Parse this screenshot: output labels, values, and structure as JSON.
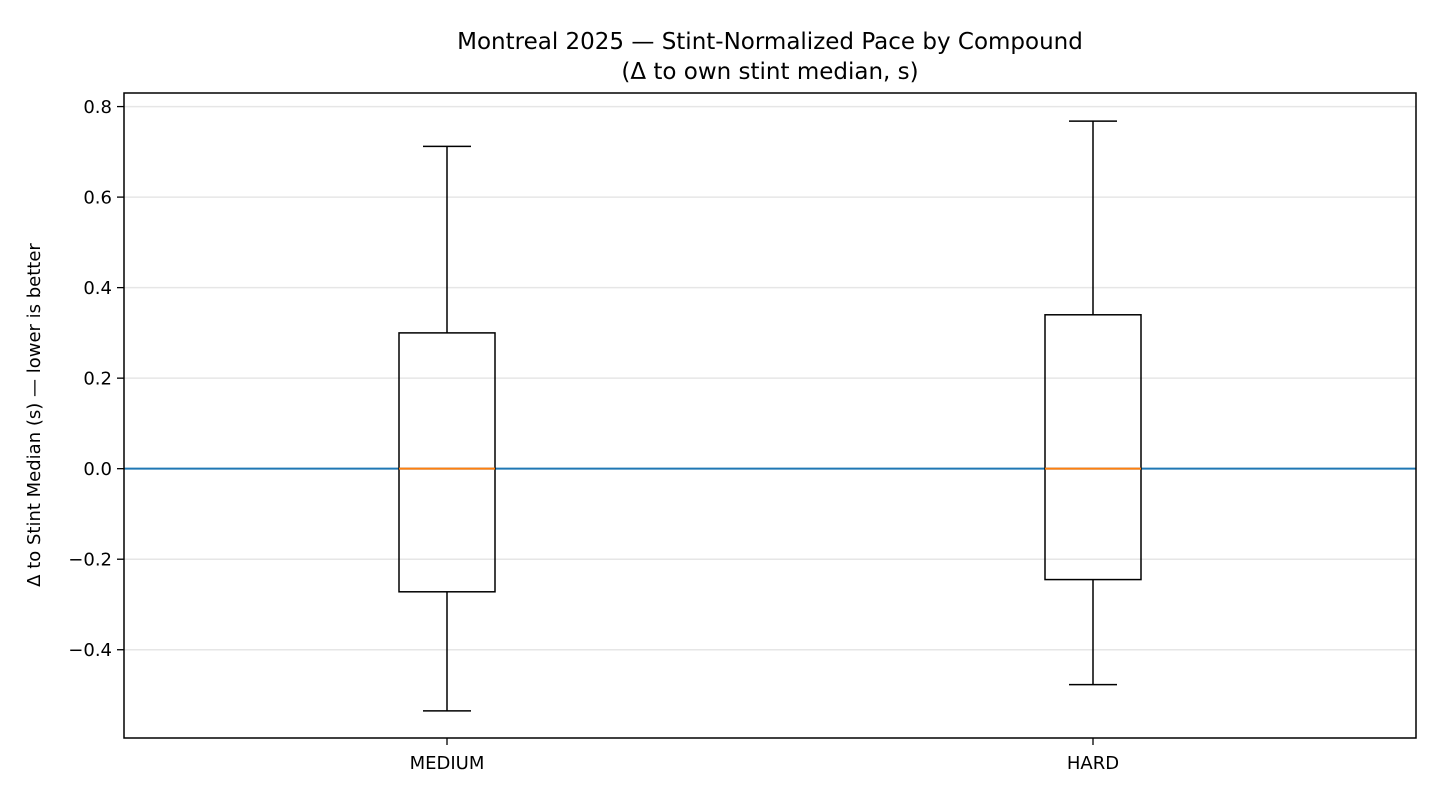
{
  "chart_data": {
    "type": "box",
    "title": "Montreal 2025 — Stint-Normalized Pace by Compound",
    "subtitle": "(Δ to own stint median, s)",
    "xlabel": "",
    "ylabel": "Δ to Stint Median (s) — lower is better",
    "categories": [
      "MEDIUM",
      "HARD"
    ],
    "boxes": [
      {
        "category": "MEDIUM",
        "whisker_low": -0.535,
        "q1": -0.272,
        "median": 0.0,
        "q3": 0.3,
        "whisker_high": 0.712
      },
      {
        "category": "HARD",
        "whisker_low": -0.477,
        "q1": -0.245,
        "median": 0.0,
        "q3": 0.34,
        "whisker_high": 0.768
      }
    ],
    "reference_line": {
      "y": 0.0,
      "color": "#1f77b4"
    },
    "ylim": [
      -0.595,
      0.83
    ],
    "yticks": [
      -0.4,
      -0.2,
      0.0,
      0.2,
      0.4,
      0.6,
      0.8
    ],
    "ytick_labels": [
      "−0.4",
      "−0.2",
      "0.0",
      "0.2",
      "0.4",
      "0.6",
      "0.8"
    ],
    "grid": "y",
    "colors": {
      "box": "#000000",
      "median": "#ff7f0e",
      "grid": "#e6e6e6"
    }
  }
}
